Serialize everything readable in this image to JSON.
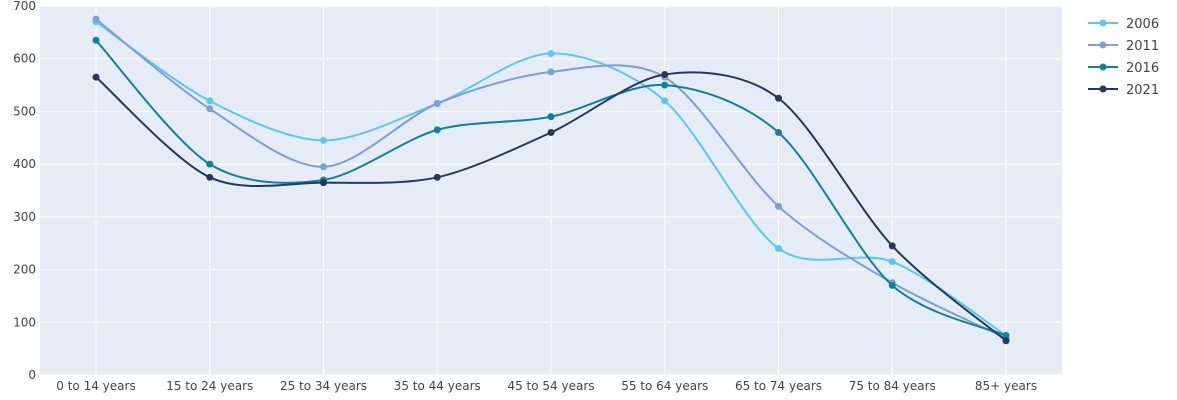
{
  "chart_data": {
    "type": "line",
    "title": "",
    "xlabel": "",
    "ylabel": "",
    "ylim": [
      0,
      700
    ],
    "yticks": [
      0,
      100,
      200,
      300,
      400,
      500,
      600,
      700
    ],
    "grid": true,
    "legend_position": "top-right",
    "plot_background": "#e5ecf6",
    "categories": [
      "0 to 14 years",
      "15 to 24 years",
      "25 to 34 years",
      "35 to 44 years",
      "45 to 54 years",
      "55 to 64 years",
      "65 to 74 years",
      "75 to 84 years",
      "85+ years"
    ],
    "series": [
      {
        "name": "2006",
        "color": "#5bc8f0",
        "values": [
          670,
          520,
          445,
          515,
          610,
          520,
          240,
          215,
          75
        ]
      },
      {
        "name": "2011",
        "color": "#7b9fd6",
        "values": [
          675,
          505,
          395,
          515,
          575,
          565,
          320,
          175,
          70
        ]
      },
      {
        "name": "2016",
        "color": "#13809e",
        "values": [
          635,
          400,
          370,
          465,
          490,
          550,
          460,
          170,
          75
        ]
      },
      {
        "name": "2021",
        "color": "#23395d",
        "values": [
          565,
          375,
          365,
          375,
          460,
          570,
          525,
          245,
          65
        ]
      }
    ]
  }
}
